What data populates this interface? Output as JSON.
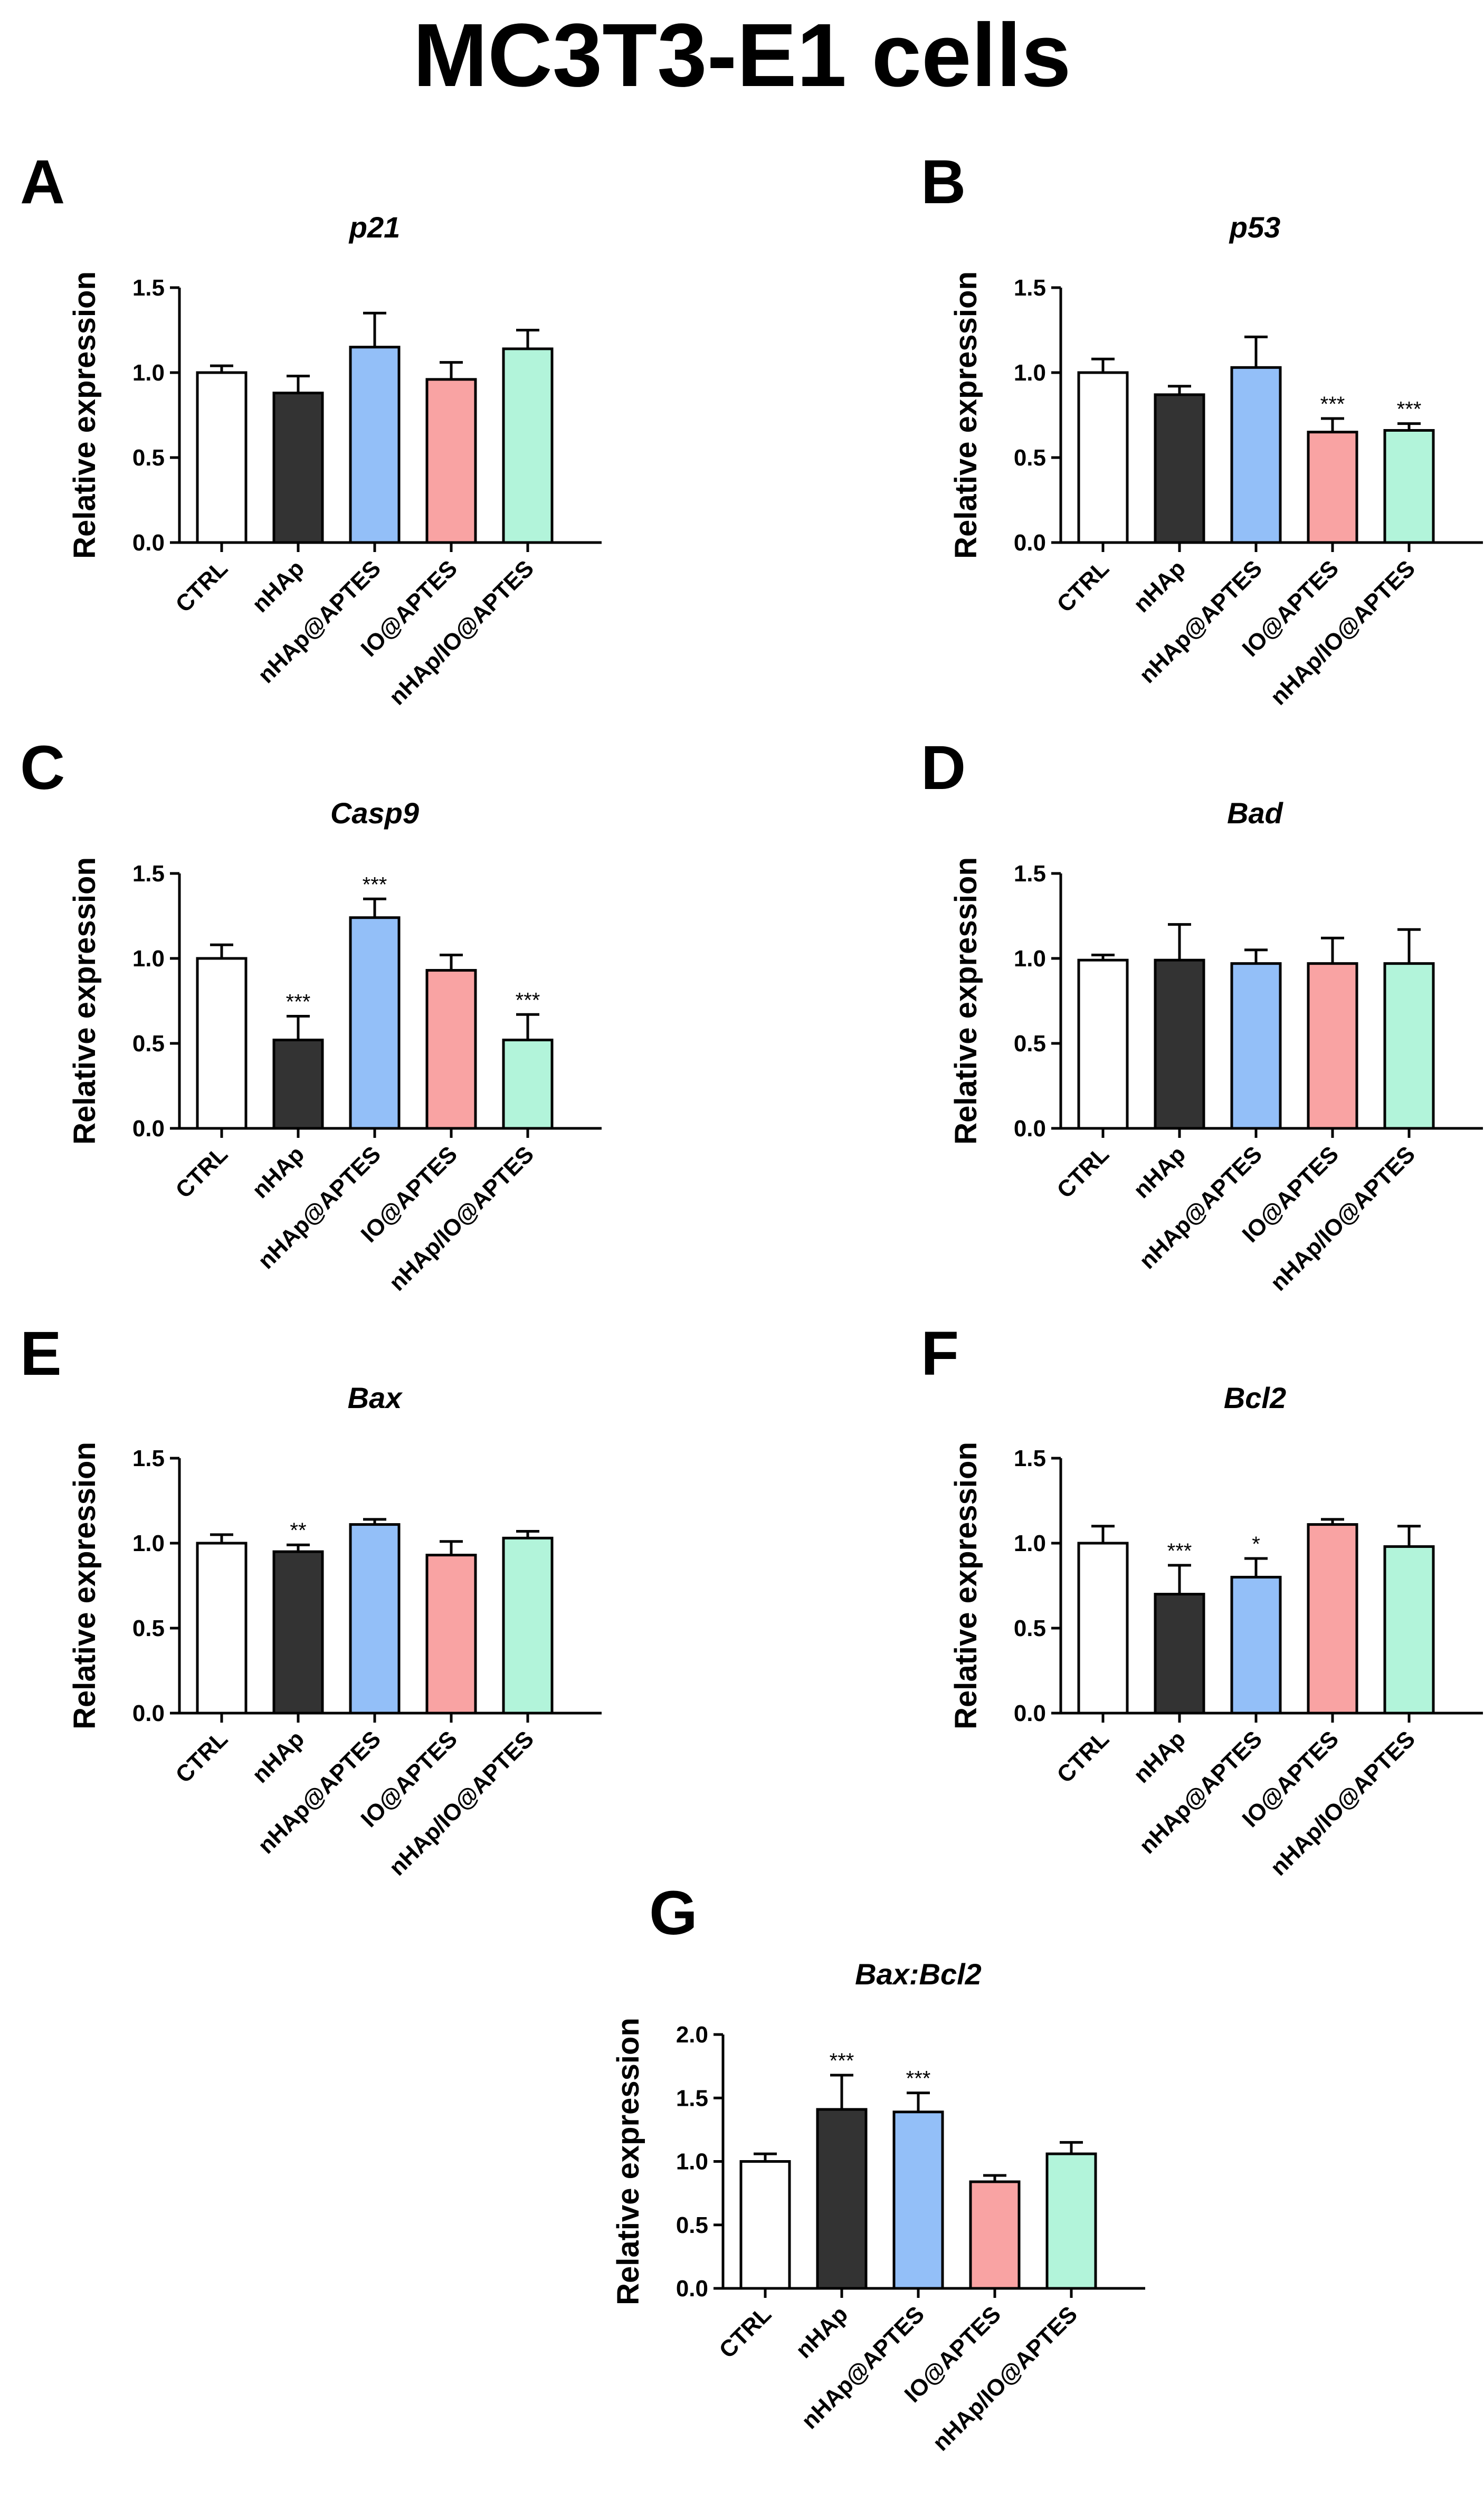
{
  "figure_title": "MC3T3-E1 cells",
  "colors": {
    "CTRL": "#ffffff",
    "nHAp": "#333333",
    "nHAp@APTES": "#93bff8",
    "IO@APTES": "#f9a3a3",
    "nHAp/IO@APTES": "#b2f4da"
  },
  "chart_data": [
    {
      "panel": "A",
      "type": "bar",
      "title": "p21",
      "ylabel": "Relative expression",
      "categories": [
        "CTRL",
        "nHAp",
        "nHAp@APTES",
        "IO@APTES",
        "nHAp/IO@APTES"
      ],
      "values": [
        1.0,
        0.88,
        1.15,
        0.96,
        1.14
      ],
      "errors": [
        0.04,
        0.1,
        0.2,
        0.1,
        0.11
      ],
      "significance": [
        "",
        "",
        "",
        "",
        ""
      ],
      "ylim": [
        0,
        1.5
      ],
      "yticks": [
        "0.0",
        "0.5",
        "1.0",
        "1.5"
      ],
      "grid": false
    },
    {
      "panel": "B",
      "type": "bar",
      "title": "p53",
      "ylabel": "Relative expression",
      "categories": [
        "CTRL",
        "nHAp",
        "nHAp@APTES",
        "IO@APTES",
        "nHAp/IO@APTES"
      ],
      "values": [
        1.0,
        0.87,
        1.03,
        0.65,
        0.66
      ],
      "errors": [
        0.08,
        0.05,
        0.18,
        0.08,
        0.04
      ],
      "significance": [
        "",
        "",
        "",
        "***",
        "***"
      ],
      "ylim": [
        0,
        1.5
      ],
      "yticks": [
        "0.0",
        "0.5",
        "1.0",
        "1.5"
      ],
      "grid": false
    },
    {
      "panel": "C",
      "type": "bar",
      "title": "Casp9",
      "ylabel": "Relative expression",
      "categories": [
        "CTRL",
        "nHAp",
        "nHAp@APTES",
        "IO@APTES",
        "nHAp/IO@APTES"
      ],
      "values": [
        1.0,
        0.52,
        1.24,
        0.93,
        0.52
      ],
      "errors": [
        0.08,
        0.14,
        0.11,
        0.09,
        0.15
      ],
      "significance": [
        "",
        "***",
        "***",
        "",
        "***"
      ],
      "ylim": [
        0,
        1.5
      ],
      "yticks": [
        "0.0",
        "0.5",
        "1.0",
        "1.5"
      ],
      "grid": false
    },
    {
      "panel": "D",
      "type": "bar",
      "title": "Bad",
      "ylabel": "Relative expression",
      "categories": [
        "CTRL",
        "nHAp",
        "nHAp@APTES",
        "IO@APTES",
        "nHAp/IO@APTES"
      ],
      "values": [
        0.99,
        0.99,
        0.97,
        0.97,
        0.97
      ],
      "errors": [
        0.03,
        0.21,
        0.08,
        0.15,
        0.2
      ],
      "significance": [
        "",
        "",
        "",
        "",
        ""
      ],
      "ylim": [
        0,
        1.5
      ],
      "yticks": [
        "0.0",
        "0.5",
        "1.0",
        "1.5"
      ],
      "grid": false
    },
    {
      "panel": "E",
      "type": "bar",
      "title": "Bax",
      "ylabel": "Relative expression",
      "categories": [
        "CTRL",
        "nHAp",
        "nHAp@APTES",
        "IO@APTES",
        "nHAp/IO@APTES"
      ],
      "values": [
        1.0,
        0.95,
        1.11,
        0.93,
        1.03
      ],
      "errors": [
        0.05,
        0.04,
        0.03,
        0.08,
        0.04
      ],
      "significance": [
        "",
        "**",
        "",
        "",
        ""
      ],
      "ylim": [
        0,
        1.5
      ],
      "yticks": [
        "0.0",
        "0.5",
        "1.0",
        "1.5"
      ],
      "grid": false
    },
    {
      "panel": "F",
      "type": "bar",
      "title": "Bcl2",
      "ylabel": "Relative expression",
      "categories": [
        "CTRL",
        "nHAp",
        "nHAp@APTES",
        "IO@APTES",
        "nHAp/IO@APTES"
      ],
      "values": [
        1.0,
        0.7,
        0.8,
        1.11,
        0.98
      ],
      "errors": [
        0.1,
        0.17,
        0.11,
        0.03,
        0.12
      ],
      "significance": [
        "",
        "***",
        "*",
        "",
        ""
      ],
      "ylim": [
        0,
        1.5
      ],
      "yticks": [
        "0.0",
        "0.5",
        "1.0",
        "1.5"
      ],
      "grid": false
    },
    {
      "panel": "G",
      "type": "bar",
      "title": "Bax:Bcl2",
      "ylabel": "Relative expression",
      "categories": [
        "CTRL",
        "nHAp",
        "nHAp@APTES",
        "IO@APTES",
        "nHAp/IO@APTES"
      ],
      "values": [
        1.0,
        1.41,
        1.39,
        0.84,
        1.06
      ],
      "errors": [
        0.06,
        0.27,
        0.15,
        0.05,
        0.09
      ],
      "significance": [
        "",
        "***",
        "***",
        "",
        ""
      ],
      "ylim": [
        0,
        2.0
      ],
      "yticks": [
        "0.0",
        "0.5",
        "1.0",
        "1.5",
        "2.0"
      ],
      "grid": false
    }
  ]
}
